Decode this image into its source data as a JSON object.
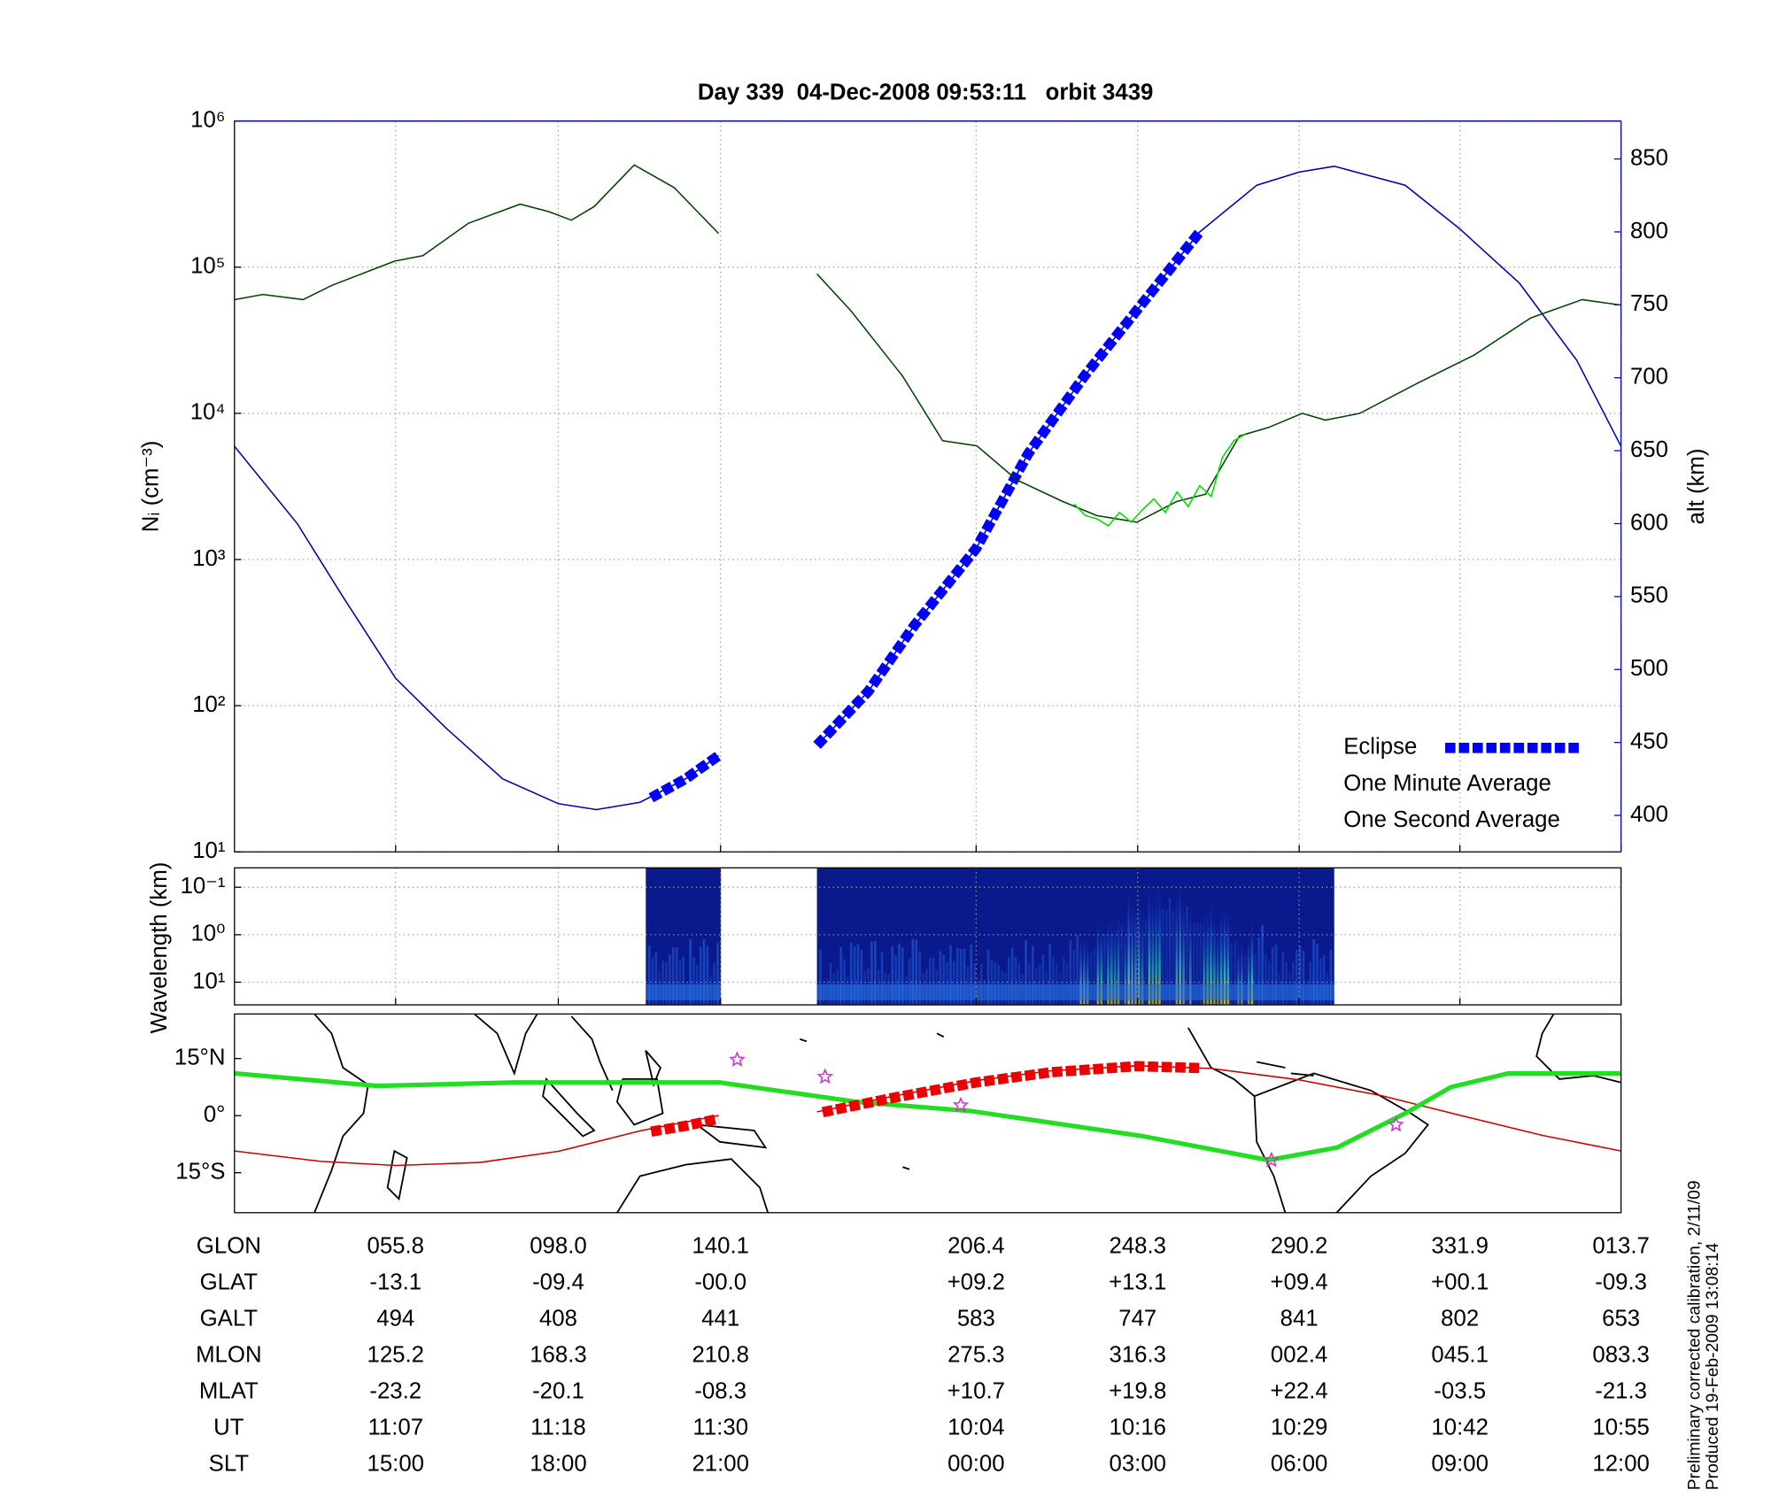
{
  "chart_data": [
    {
      "type": "line",
      "title": "Day 339  04-Dec-2008 09:53:11   orbit 3439",
      "ylabel": "Nᵢ (cm⁻³)",
      "y2label": "alt (km)",
      "y2color": "#0000cc",
      "xlim": [
        14,
        373.7
      ],
      "xticks": [
        55.8,
        98.0,
        140.1,
        206.4,
        248.3,
        290.2,
        331.9,
        373.7
      ],
      "ylog": true,
      "ylim": [
        10,
        1000000
      ],
      "yticks": [
        {
          "value": 10,
          "label": "10¹"
        },
        {
          "value": 100,
          "label": "10²"
        },
        {
          "value": 1000,
          "label": "10³"
        },
        {
          "value": 10000,
          "label": "10⁴"
        },
        {
          "value": 100000,
          "label": "10⁵"
        },
        {
          "value": 1000000,
          "label": "10⁶"
        }
      ],
      "y2lim": [
        375,
        876
      ],
      "y2ticks": [
        400,
        450,
        500,
        550,
        600,
        650,
        700,
        750,
        800,
        850
      ],
      "grid": true,
      "legend": "lower right",
      "series": [
        {
          "axis": "y2",
          "color": "#0000aa",
          "style": "thin",
          "x": [
            14.0,
            30.3,
            42.1,
            55.8,
            68.8,
            83.6,
            98.0,
            107.9,
            119.2,
            131.0,
            139.6,
            null,
            165.1,
            178.4,
            190.3,
            206.4,
            219.9,
            234.7,
            248.3,
            264.4,
            279.2,
            290.2,
            299.3,
            317.7,
            331.9,
            347.3,
            362.2,
            373.7
          ],
          "values": [
            653,
            600,
            550,
            494,
            460,
            425,
            408,
            404,
            409,
            425,
            441,
            null,
            448,
            485,
            530,
            583,
            648,
            702,
            747,
            800,
            832,
            841,
            845,
            832,
            802,
            765,
            712,
            653
          ]
        },
        {
          "name": "Eclipse",
          "axis": "y2",
          "color": "#0000ff",
          "style": "dashed",
          "x": [
            122.1,
            131.0,
            139.6,
            null,
            165.1,
            178.4,
            190.3,
            206.4,
            219.9,
            234.7,
            248.3,
            264.4
          ],
          "values": [
            412,
            425,
            441,
            null,
            448,
            485,
            530,
            583,
            648,
            702,
            747,
            800
          ]
        },
        {
          "name": "One Minute Average",
          "color": "#004400",
          "style": "thin",
          "x": [
            14.0,
            21.4,
            31.8,
            39.2,
            55.5,
            62.9,
            74.7,
            88.1,
            95.5,
            101.4,
            107.3,
            117.7,
            128.1,
            139.6,
            null,
            165.1,
            174.0,
            187.3,
            197.7,
            206.6,
            217.0,
            228.8,
            237.7,
            248.1,
            258.5,
            265.9,
            274.7,
            282.2,
            291.0,
            297.0,
            305.9,
            320.7,
            335.5,
            350.3,
            363.6,
            373.7
          ],
          "values": [
            60000,
            65000,
            60000,
            75000,
            110000,
            120000,
            200000,
            270000,
            240000,
            210000,
            260000,
            500000,
            350000,
            170000,
            null,
            90000,
            50000,
            18000,
            6500,
            6000,
            3500,
            2500,
            2000,
            1800,
            2500,
            2800,
            7000,
            8000,
            10000,
            9000,
            10000,
            16000,
            25000,
            45000,
            60000,
            55000
          ]
        },
        {
          "name": "One Second Average",
          "color": "#00dd00",
          "style": "thin",
          "x": [
            231.8,
            234.7,
            237.7,
            240.7,
            243.6,
            246.6,
            249.6,
            252.5,
            255.5,
            258.5,
            261.4,
            264.4,
            267.4,
            270.3,
            273.3,
            276.2
          ],
          "values": [
            2400,
            2000,
            1900,
            1700,
            2100,
            1800,
            2200,
            2600,
            2100,
            2900,
            2300,
            3200,
            2700,
            5000,
            6500,
            7200
          ]
        }
      ]
    },
    {
      "type": "spectrogram",
      "ylabel": "Wavelength (km)",
      "xlim": [
        14,
        373.7
      ],
      "xticks": [
        55.8,
        98.0,
        140.1,
        206.4,
        248.3,
        290.2,
        331.9,
        373.7
      ],
      "ylog": true,
      "ylim": [
        30,
        0.039
      ],
      "yticks": [
        {
          "value": 0.1,
          "label": "10⁻¹"
        },
        {
          "value": 1,
          "label": "10⁰"
        },
        {
          "value": 10,
          "label": "10¹"
        }
      ],
      "grid": true,
      "segments": [
        [
          120.7,
          140.2
        ],
        [
          165.1,
          299.3
        ]
      ]
    },
    {
      "type": "map",
      "xlim": [
        14,
        373.7
      ],
      "ylim": [
        -25.5,
        26.7
      ],
      "yticks": [
        {
          "value": 15,
          "label": "15°N"
        },
        {
          "value": 0,
          "label": "0°"
        },
        {
          "value": -15,
          "label": "15°S"
        }
      ],
      "grid": false,
      "series": [
        {
          "color": "#cc0000",
          "style": "thin",
          "x": [
            14.0,
            36.2,
            55.8,
            77.7,
            98.0,
            119.2,
            139.6,
            null,
            165.1,
            184.4,
            206.4,
            225.9,
            248.3,
            267.4,
            290.2,
            311.8,
            331.9,
            353.3,
            373.7
          ],
          "values": [
            -9.3,
            -12.0,
            -13.1,
            -12.3,
            -9.4,
            -4.0,
            0.0,
            null,
            1.0,
            5.0,
            9.2,
            11.8,
            13.1,
            12.4,
            9.4,
            5.2,
            0.1,
            -5.2,
            -9.3
          ]
        },
        {
          "color": "#22dd22",
          "style": "thick",
          "x": [
            14.0,
            51.0,
            86.6,
            139.9,
            175.5,
            205.1,
            249.6,
            282.2,
            300.0,
            317.7,
            329.6,
            344.4,
            373.7
          ],
          "values": [
            11.1,
            7.8,
            8.7,
            8.7,
            3.6,
            1.2,
            -5.4,
            -11.7,
            -8.4,
            0.6,
            7.5,
            11.1,
            11.1
          ]
        },
        {
          "color": "#ee0000",
          "style": "dashed",
          "x": [
            122.1,
            131.0,
            139.6,
            null,
            166.6,
            184.4,
            206.3,
            225.9,
            248.1,
            264.4
          ],
          "values": [
            -4.2,
            -2.7,
            -0.8,
            null,
            0.9,
            4.6,
            8.7,
            11.4,
            13.0,
            12.5
          ]
        },
        {
          "color": "#cc33cc",
          "style": "star",
          "x": [
            144.4,
            167.2,
            202.4,
            283.0,
            315.3
          ],
          "values": [
            14.7,
            10.2,
            2.7,
            -11.7,
            -2.4
          ]
        }
      ]
    }
  ],
  "ephemeris": {
    "labels": [
      "GLON",
      "GLAT",
      "GALT",
      "MLON",
      "MLAT",
      "UT",
      "SLT"
    ],
    "rows": [
      [
        "055.8",
        "098.0",
        "140.1",
        "206.4",
        "248.3",
        "290.2",
        "331.9",
        "013.7"
      ],
      [
        "-13.1",
        "-09.4",
        "-00.0",
        "+09.2",
        "+13.1",
        "+09.4",
        "+00.1",
        "-09.3"
      ],
      [
        "494",
        "408",
        "441",
        "583",
        "747",
        "841",
        "802",
        "653"
      ],
      [
        "125.2",
        "168.3",
        "210.8",
        "275.3",
        "316.3",
        "002.4",
        "045.1",
        "083.3"
      ],
      [
        "-23.2",
        "-20.1",
        "-08.3",
        "+10.7",
        "+19.8",
        "+22.4",
        "-03.5",
        "-21.3"
      ],
      [
        "11:07",
        "11:18",
        "11:30",
        "10:04",
        "10:16",
        "10:29",
        "10:42",
        "10:55"
      ],
      [
        "15:00",
        "18:00",
        "21:00",
        "00:00",
        "03:00",
        "06:00",
        "09:00",
        "12:00"
      ]
    ]
  },
  "footnote": [
    "Preliminary corrected calibration, 2/11/09",
    "Produced 19-Feb-2009 13:08:14"
  ]
}
